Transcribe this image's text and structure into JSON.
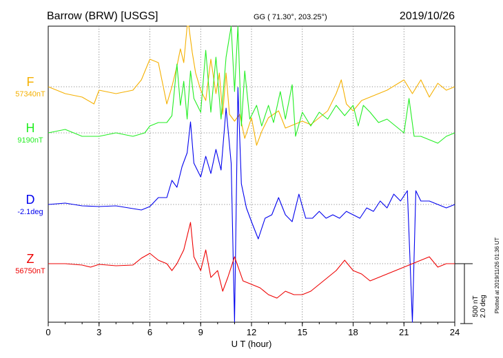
{
  "header": {
    "station": "Barrow (BRW)  [USGS]",
    "coords": "GG ( 71.30°, 203.25°)",
    "date": "2019/10/26"
  },
  "side_note": "Plotted at 2019/11/26 01:36 UT",
  "scale_bar": {
    "line1": "500 nT",
    "line2": "2.0 deg"
  },
  "chart_data": {
    "type": "line",
    "xlabel": "U T (hour)",
    "xlim": [
      0,
      24
    ],
    "x_ticks": [
      "0",
      "3",
      "6",
      "9",
      "12",
      "15",
      "18",
      "21",
      "24"
    ],
    "grid": true,
    "series": [
      {
        "name": "F",
        "baseline_label": "57340nT",
        "color": "#f5b000",
        "points": [
          [
            0,
            0
          ],
          [
            1,
            -10
          ],
          [
            2,
            -15
          ],
          [
            2.7,
            -25
          ],
          [
            3,
            -5
          ],
          [
            4,
            -10
          ],
          [
            5,
            -5
          ],
          [
            5.5,
            10
          ],
          [
            6,
            40
          ],
          [
            6.5,
            35
          ],
          [
            7,
            -25
          ],
          [
            7.3,
            0
          ],
          [
            7.6,
            30
          ],
          [
            7.8,
            55
          ],
          [
            8,
            35
          ],
          [
            8.2,
            100
          ],
          [
            8.3,
            110
          ],
          [
            8.5,
            50
          ],
          [
            8.7,
            20
          ],
          [
            9,
            -5
          ],
          [
            9.3,
            -20
          ],
          [
            9.6,
            40
          ],
          [
            9.9,
            -10
          ],
          [
            10.1,
            20
          ],
          [
            10.3,
            -40
          ],
          [
            10.5,
            20
          ],
          [
            10.7,
            -40
          ],
          [
            11,
            -50
          ],
          [
            11.3,
            -40
          ],
          [
            11.6,
            -75
          ],
          [
            12,
            -45
          ],
          [
            12.3,
            -85
          ],
          [
            12.6,
            -65
          ],
          [
            13,
            -45
          ],
          [
            13.6,
            -35
          ],
          [
            14,
            -60
          ],
          [
            14.5,
            -55
          ],
          [
            15,
            -50
          ],
          [
            15.5,
            -55
          ],
          [
            16,
            -45
          ],
          [
            16.5,
            -35
          ],
          [
            17,
            -10
          ],
          [
            17.3,
            10
          ],
          [
            17.6,
            -25
          ],
          [
            18,
            -35
          ],
          [
            18.5,
            -20
          ],
          [
            19,
            -15
          ],
          [
            20,
            -5
          ],
          [
            21,
            10
          ],
          [
            21.5,
            -10
          ],
          [
            22,
            10
          ],
          [
            22.5,
            -15
          ],
          [
            23,
            5
          ],
          [
            23.5,
            -5
          ],
          [
            24,
            0
          ]
        ]
      },
      {
        "name": "H",
        "baseline_label": "9190nT",
        "color": "#22ee22",
        "points": [
          [
            0,
            0
          ],
          [
            1,
            5
          ],
          [
            2,
            -5
          ],
          [
            3,
            -5
          ],
          [
            4,
            0
          ],
          [
            5,
            -5
          ],
          [
            5.7,
            0
          ],
          [
            6,
            10
          ],
          [
            6.5,
            15
          ],
          [
            7,
            15
          ],
          [
            7.3,
            25
          ],
          [
            7.6,
            100
          ],
          [
            7.8,
            40
          ],
          [
            8,
            75
          ],
          [
            8.2,
            20
          ],
          [
            8.4,
            90
          ],
          [
            8.6,
            50
          ],
          [
            9,
            30
          ],
          [
            9.3,
            120
          ],
          [
            9.6,
            30
          ],
          [
            9.9,
            110
          ],
          [
            10.2,
            20
          ],
          [
            10.5,
            110
          ],
          [
            10.8,
            200
          ],
          [
            11,
            60
          ],
          [
            11.2,
            260
          ],
          [
            11.4,
            10
          ],
          [
            11.6,
            90
          ],
          [
            11.9,
            20
          ],
          [
            12.3,
            40
          ],
          [
            12.6,
            10
          ],
          [
            13,
            40
          ],
          [
            13.3,
            15
          ],
          [
            13.7,
            60
          ],
          [
            14,
            20
          ],
          [
            14.4,
            70
          ],
          [
            14.6,
            -5
          ],
          [
            15,
            30
          ],
          [
            15.5,
            10
          ],
          [
            16,
            30
          ],
          [
            16.5,
            20
          ],
          [
            17,
            40
          ],
          [
            17.5,
            25
          ],
          [
            18,
            40
          ],
          [
            18.3,
            10
          ],
          [
            18.6,
            40
          ],
          [
            19,
            30
          ],
          [
            19.5,
            15
          ],
          [
            20,
            20
          ],
          [
            20.5,
            10
          ],
          [
            21,
            0
          ],
          [
            21.3,
            50
          ],
          [
            21.6,
            -5
          ],
          [
            22,
            -5
          ],
          [
            22.5,
            -10
          ],
          [
            23,
            -15
          ],
          [
            23.5,
            -5
          ],
          [
            24,
            0
          ]
        ]
      },
      {
        "name": "D",
        "baseline_label": "-2.1deg",
        "color": "#0000ee",
        "points": [
          [
            0,
            0
          ],
          [
            1,
            2
          ],
          [
            2,
            -2
          ],
          [
            3,
            -3
          ],
          [
            4,
            -2
          ],
          [
            5,
            -6
          ],
          [
            5.5,
            -8
          ],
          [
            6,
            -3
          ],
          [
            6.5,
            10
          ],
          [
            7,
            10
          ],
          [
            7.3,
            35
          ],
          [
            7.6,
            25
          ],
          [
            7.9,
            55
          ],
          [
            8.2,
            75
          ],
          [
            8.4,
            120
          ],
          [
            8.6,
            60
          ],
          [
            9,
            40
          ],
          [
            9.3,
            70
          ],
          [
            9.6,
            45
          ],
          [
            9.9,
            80
          ],
          [
            10.2,
            50
          ],
          [
            10.5,
            140
          ],
          [
            10.8,
            60
          ],
          [
            11,
            -280
          ],
          [
            11.2,
            170
          ],
          [
            11.4,
            30
          ],
          [
            11.7,
            -5
          ],
          [
            12,
            -25
          ],
          [
            12.4,
            -50
          ],
          [
            12.8,
            -20
          ],
          [
            13.2,
            -15
          ],
          [
            13.6,
            10
          ],
          [
            14,
            -15
          ],
          [
            14.4,
            -25
          ],
          [
            14.8,
            15
          ],
          [
            15.2,
            -20
          ],
          [
            15.6,
            -20
          ],
          [
            16,
            -10
          ],
          [
            16.4,
            -20
          ],
          [
            16.8,
            -15
          ],
          [
            17.2,
            -20
          ],
          [
            17.6,
            -10
          ],
          [
            18,
            -15
          ],
          [
            18.4,
            -20
          ],
          [
            18.8,
            -5
          ],
          [
            19.2,
            -10
          ],
          [
            19.6,
            5
          ],
          [
            20,
            -5
          ],
          [
            20.4,
            15
          ],
          [
            20.8,
            5
          ],
          [
            21.2,
            20
          ],
          [
            21.5,
            -250
          ],
          [
            21.7,
            20
          ],
          [
            22,
            5
          ],
          [
            22.5,
            5
          ],
          [
            23,
            0
          ],
          [
            23.5,
            -5
          ],
          [
            24,
            0
          ]
        ]
      },
      {
        "name": "Z",
        "baseline_label": "56750nT",
        "color": "#ee0000",
        "points": [
          [
            0,
            0
          ],
          [
            1,
            0
          ],
          [
            2,
            -2
          ],
          [
            2.5,
            -5
          ],
          [
            3,
            -1
          ],
          [
            4,
            -3
          ],
          [
            5,
            -2
          ],
          [
            5.5,
            8
          ],
          [
            6,
            15
          ],
          [
            6.5,
            5
          ],
          [
            7,
            0
          ],
          [
            7.3,
            -10
          ],
          [
            7.6,
            0
          ],
          [
            8,
            20
          ],
          [
            8.2,
            40
          ],
          [
            8.4,
            60
          ],
          [
            8.6,
            10
          ],
          [
            9,
            -10
          ],
          [
            9.3,
            20
          ],
          [
            9.6,
            -20
          ],
          [
            10,
            -10
          ],
          [
            10.3,
            -40
          ],
          [
            10.6,
            -20
          ],
          [
            11,
            10
          ],
          [
            11.5,
            -25
          ],
          [
            12,
            -30
          ],
          [
            12.5,
            -35
          ],
          [
            13,
            -45
          ],
          [
            13.5,
            -50
          ],
          [
            14,
            -40
          ],
          [
            14.5,
            -45
          ],
          [
            15,
            -45
          ],
          [
            15.5,
            -40
          ],
          [
            16,
            -30
          ],
          [
            16.5,
            -20
          ],
          [
            17,
            -10
          ],
          [
            17.5,
            5
          ],
          [
            18,
            -10
          ],
          [
            18.5,
            -15
          ],
          [
            19,
            -25
          ],
          [
            19.5,
            -20
          ],
          [
            20,
            -15
          ],
          [
            20.5,
            -10
          ],
          [
            21,
            -5
          ],
          [
            21.5,
            0
          ],
          [
            22,
            5
          ],
          [
            22.5,
            10
          ],
          [
            23,
            -5
          ],
          [
            23.5,
            0
          ],
          [
            24,
            0
          ]
        ]
      }
    ]
  }
}
